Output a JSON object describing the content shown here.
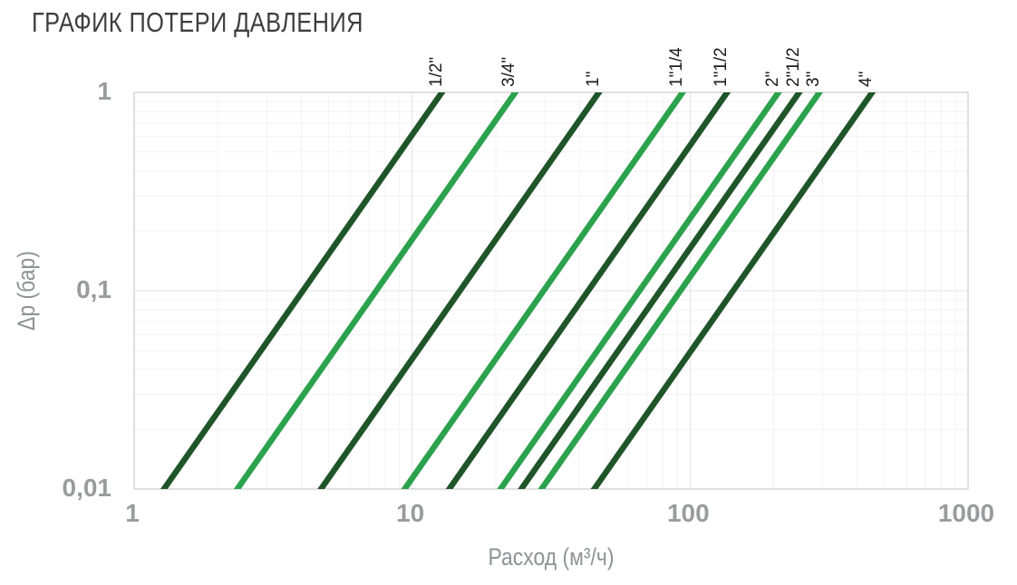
{
  "title": "ГРАФИК ПОТЕРИ ДАВЛЕНИЯ",
  "colors": {
    "dark_green": "#1f5529",
    "bright_green": "#2ca24e",
    "grid_minor": "#f3f3f3",
    "grid_major": "#e3e3e3",
    "plot_border": "#cfcfcf",
    "tick_text": "#999b9e",
    "axis_title_text": "#8f9296",
    "title_text": "#3d3d3d",
    "pipe_label_text": "#1c1c1c"
  },
  "chart_data": {
    "type": "line",
    "title": "ГРАФИК ПОТЕРИ ДАВЛЕНИЯ",
    "xlabel": "Расход (м³/ч)",
    "ylabel": "Δp (бар)",
    "x_scale": "log",
    "y_scale": "log",
    "xlim": [
      1,
      1000
    ],
    "ylim": [
      0.01,
      1
    ],
    "x_ticks": [
      {
        "value": 1,
        "label": "1"
      },
      {
        "value": 10,
        "label": "10"
      },
      {
        "value": 100,
        "label": "100"
      },
      {
        "value": 1000,
        "label": "1000"
      }
    ],
    "y_ticks": [
      {
        "value": 1,
        "label": "1"
      },
      {
        "value": 0.1,
        "label": "0,1"
      },
      {
        "value": 0.01,
        "label": "0,01"
      }
    ],
    "grid": {
      "minor": true,
      "major": true
    },
    "legend_position": "rotated-labels-above-line-tops",
    "series_note": "Each straight line on the log-log plot runs from (flow, dp=0.01) to (10x flow, dp=1), slope 2",
    "series": [
      {
        "name": "1/2\"",
        "color": "#1f5529",
        "points": [
          [
            1.28,
            0.01
          ],
          [
            12.8,
            1
          ]
        ]
      },
      {
        "name": "3/4\"",
        "color": "#2ca24e",
        "points": [
          [
            2.35,
            0.01
          ],
          [
            23.5,
            1
          ]
        ]
      },
      {
        "name": "1\"",
        "color": "#1f5529",
        "points": [
          [
            4.7,
            0.01
          ],
          [
            47,
            1
          ]
        ]
      },
      {
        "name": "1\"1/4",
        "color": "#2ca24e",
        "points": [
          [
            9.4,
            0.01
          ],
          [
            94,
            1
          ]
        ]
      },
      {
        "name": "1\"1/2",
        "color": "#1f5529",
        "points": [
          [
            13.6,
            0.01
          ],
          [
            136,
            1
          ]
        ]
      },
      {
        "name": "2\"",
        "color": "#2ca24e",
        "points": [
          [
            20.8,
            0.01
          ],
          [
            208,
            1
          ]
        ]
      },
      {
        "name": "2\"1/2",
        "color": "#1f5529",
        "points": [
          [
            24.7,
            0.01
          ],
          [
            247,
            1
          ]
        ]
      },
      {
        "name": "3\"",
        "color": "#2ca24e",
        "points": [
          [
            29.2,
            0.01
          ],
          [
            292,
            1
          ]
        ]
      },
      {
        "name": "4\"",
        "color": "#1f5529",
        "points": [
          [
            45.2,
            0.01
          ],
          [
            452,
            1
          ]
        ]
      }
    ]
  }
}
